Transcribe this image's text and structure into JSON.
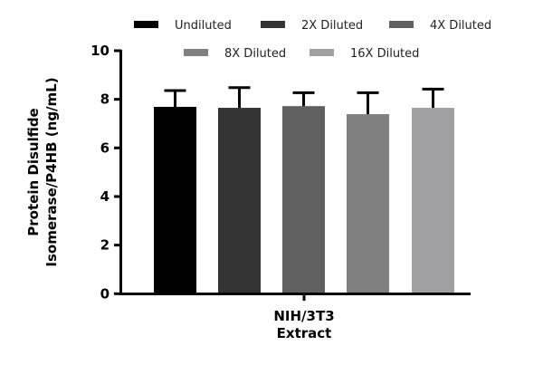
{
  "chart_data": {
    "type": "bar",
    "title": "",
    "ylabel_lines": [
      "Protein Disulfide",
      "Isomerase/P4HB (ng/mL)"
    ],
    "xlabel_lines": [
      "NIH/3T3",
      "Extract"
    ],
    "categories": [
      "NIH/3T3 Extract"
    ],
    "ylim": [
      0,
      10
    ],
    "yticks": [
      0,
      2,
      4,
      6,
      8,
      10
    ],
    "grid": false,
    "legend_placement": "top",
    "series": [
      {
        "name": "Undiluted",
        "values": [
          7.69
        ],
        "error_upper": [
          8.36
        ],
        "color": "#000000"
      },
      {
        "name": "2X Diluted",
        "values": [
          7.65
        ],
        "error_upper": [
          8.48
        ],
        "color": "#333333"
      },
      {
        "name": "4X Diluted",
        "values": [
          7.72
        ],
        "error_upper": [
          8.27
        ],
        "color": "#606060"
      },
      {
        "name": "8X Diluted",
        "values": [
          7.39
        ],
        "error_upper": [
          8.27
        ],
        "color": "#808080"
      },
      {
        "name": "16X Diluted",
        "values": [
          7.65
        ],
        "error_upper": [
          8.42
        ],
        "color": "#a0a0a2"
      }
    ]
  }
}
